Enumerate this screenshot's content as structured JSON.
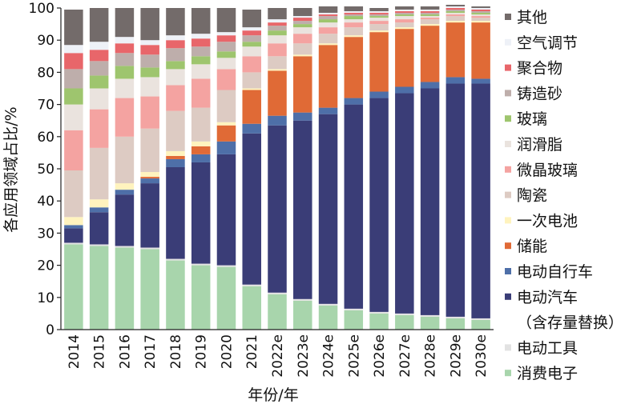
{
  "chart_data": {
    "type": "bar",
    "stacked": true,
    "xlabel": "年份/年",
    "ylabel": "各应用领域占比/%",
    "ylim": [
      0,
      100
    ],
    "yticks": [
      0,
      10,
      20,
      30,
      40,
      50,
      60,
      70,
      80,
      90,
      100
    ],
    "categories": [
      "2014",
      "2015",
      "2016",
      "2017",
      "2018",
      "2019",
      "2020",
      "2021",
      "2022e",
      "2023e",
      "2024e",
      "2025e",
      "2026e",
      "2027e",
      "2028e",
      "2029e",
      "2030e"
    ],
    "legend_position": "right",
    "series": [
      {
        "name": "消费电子",
        "color": "#a8d5ac",
        "values": [
          26.5,
          26,
          25.5,
          25,
          21.5,
          20,
          19.5,
          13.5,
          11,
          9,
          7.5,
          6,
          5,
          4.5,
          4,
          3.5,
          3
        ]
      },
      {
        "name": "电动工具",
        "color": "#e2e2e2",
        "values": [
          0.5,
          0.5,
          0.5,
          0.5,
          0.5,
          0.5,
          0.5,
          0.5,
          0.5,
          0.5,
          0.5,
          0.5,
          0.5,
          0.5,
          0.5,
          0.5,
          0.5
        ]
      },
      {
        "name": "电动汽车\n（含存量替换）",
        "color": "#3a3d77",
        "values": [
          4.5,
          10,
          16,
          20,
          28.5,
          31.5,
          34.5,
          47,
          52,
          55.5,
          59,
          63.5,
          66.5,
          68.5,
          70.5,
          72.5,
          73
        ]
      },
      {
        "name": "电动自行车",
        "color": "#4e6fa8",
        "values": [
          1,
          1.5,
          1.5,
          1.5,
          2.5,
          2.5,
          4,
          3,
          3,
          2.5,
          2,
          2,
          2,
          2,
          2,
          2,
          1.5
        ]
      },
      {
        "name": "储能",
        "color": "#e06a36",
        "values": [
          0,
          0,
          0,
          0.5,
          1,
          2.5,
          5,
          10.5,
          14,
          17.5,
          19.5,
          19,
          18.5,
          18,
          17.5,
          17,
          17.5
        ]
      },
      {
        "name": "一次电池",
        "color": "#fff3be",
        "values": [
          2.5,
          2.5,
          2,
          1.5,
          1.5,
          1.5,
          1,
          0.5,
          0.5,
          0.5,
          0.5,
          0.5,
          0.5,
          0.5,
          0.5,
          0.5,
          0.5
        ]
      },
      {
        "name": "陶瓷",
        "color": "#ddcbc3",
        "values": [
          14.5,
          16,
          14.5,
          13.5,
          12.5,
          10.5,
          10,
          5,
          4,
          3.5,
          3,
          2.5,
          2,
          1.5,
          1.5,
          1.5,
          1
        ]
      },
      {
        "name": "微晶玻璃",
        "color": "#f4a3a1",
        "values": [
          12.5,
          12,
          12,
          10,
          8,
          9,
          6.5,
          5,
          4,
          3,
          2,
          1.5,
          1,
          1,
          0.5,
          0.5,
          0.5
        ]
      },
      {
        "name": "润滑脂",
        "color": "#eae3de",
        "values": [
          8,
          6.5,
          6,
          6,
          5,
          4.5,
          3.5,
          3,
          2.5,
          2,
          1.5,
          1,
          1,
          1,
          0.5,
          0.5,
          0.5
        ]
      },
      {
        "name": "玻璃",
        "color": "#9ec56e",
        "values": [
          5,
          4,
          4,
          3,
          2.5,
          2.5,
          2,
          1.5,
          1.5,
          1,
          1,
          1,
          0.5,
          0.5,
          0.5,
          0.5,
          0.5
        ]
      },
      {
        "name": "铸造砂",
        "color": "#beaeab",
        "values": [
          6,
          4.5,
          4,
          4,
          4,
          3,
          3,
          2,
          1.5,
          1,
          1,
          0.5,
          0.5,
          0.5,
          0.5,
          0.5,
          0.5
        ]
      },
      {
        "name": "聚合物",
        "color": "#e8666a",
        "values": [
          5,
          3.5,
          3,
          3,
          2.5,
          2.5,
          2,
          1.5,
          1,
          1,
          0.5,
          0.5,
          0.5,
          0.5,
          0.5,
          0.5,
          0.5
        ]
      },
      {
        "name": "空气调节",
        "color": "#eef1f7",
        "values": [
          2.5,
          2.5,
          2,
          1.5,
          1.5,
          1.5,
          1,
          1,
          1,
          0.5,
          0.5,
          0.5,
          0.5,
          0.5,
          0.5,
          0.5,
          0.5
        ]
      },
      {
        "name": "其他",
        "color": "#736b6a",
        "values": [
          11,
          10.5,
          9,
          10,
          8.5,
          8,
          7.5,
          5.5,
          3.5,
          2.5,
          2,
          1.5,
          1,
          1,
          1,
          0.5,
          0.5
        ]
      }
    ]
  }
}
